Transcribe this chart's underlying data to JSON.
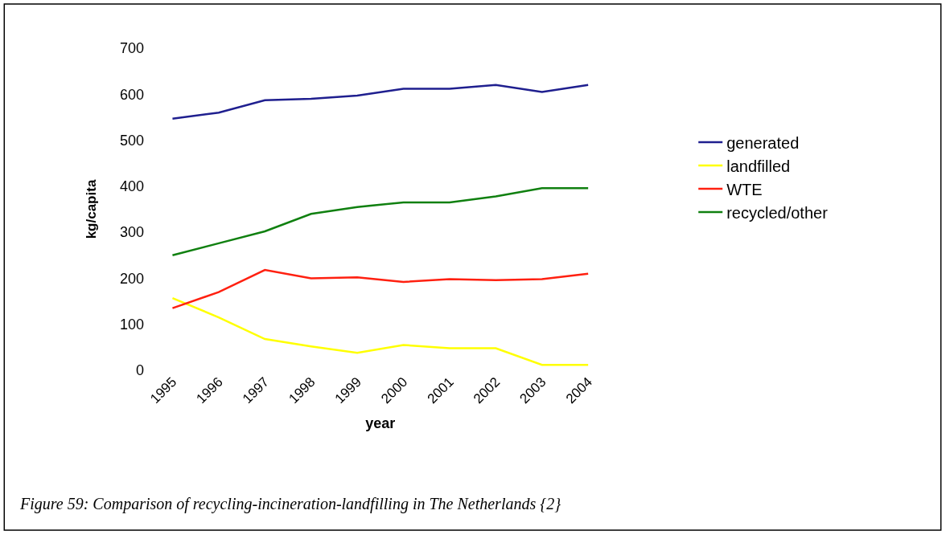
{
  "chart_data": {
    "type": "line",
    "xlabel": "year",
    "ylabel": "kg/capita",
    "categories": [
      "1995",
      "1996",
      "1997",
      "1998",
      "1999",
      "2000",
      "2001",
      "2002",
      "2003",
      "2004"
    ],
    "series": [
      {
        "name": "generated",
        "color": "#1f1f8f",
        "values": [
          547,
          560,
          587,
          590,
          597,
          612,
          612,
          620,
          605,
          620
        ]
      },
      {
        "name": "landfilled",
        "color": "#ffff00",
        "values": [
          157,
          115,
          68,
          52,
          38,
          55,
          48,
          48,
          12,
          12
        ]
      },
      {
        "name": "WTE",
        "color": "#ff2010",
        "values": [
          135,
          170,
          218,
          200,
          202,
          192,
          198,
          196,
          198,
          210
        ]
      },
      {
        "name": "recycled/other",
        "color": "#108010",
        "values": [
          250,
          276,
          302,
          340,
          355,
          365,
          365,
          378,
          396,
          396
        ]
      }
    ],
    "ylim": [
      0,
      700
    ],
    "yticks": [
      0,
      100,
      200,
      300,
      400,
      500,
      600,
      700
    ],
    "legend": "right",
    "marker": "none",
    "line_style": "solid",
    "annotations": [
      "Figure 59: Comparison of recycling-incineration-landfilling in The Netherlands {2}"
    ]
  }
}
